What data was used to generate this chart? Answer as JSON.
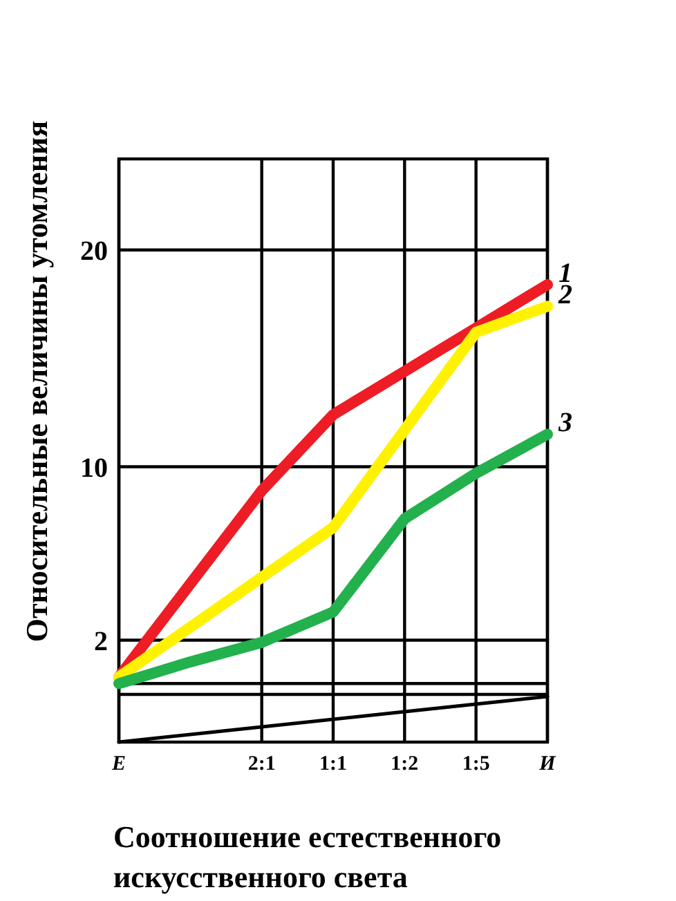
{
  "chart_data": {
    "type": "line",
    "xlabel": "Соотношение естественного\nискусственного света",
    "ylabel": "Относительные величины утомления",
    "categories": [
      "Е",
      null,
      "2:1",
      "1:1",
      "1:2",
      "1:5",
      "И"
    ],
    "ylim": [
      -2.7,
      24.2
    ],
    "yticks": [
      {
        "value": -0.5,
        "label": null
      },
      {
        "value": 0,
        "label": null
      },
      2,
      10,
      20
    ],
    "grid": true,
    "line_style": "solid",
    "marker": "none",
    "series": [
      {
        "name": "1",
        "color": "#ee1c25",
        "values": [
          0.3,
          4.6,
          8.9,
          12.4,
          14.4,
          16.4,
          18.4
        ]
      },
      {
        "name": "2",
        "color": "#fff200",
        "values": [
          0.3,
          2.6,
          4.9,
          7.2,
          11.7,
          16.2,
          17.4
        ]
      },
      {
        "name": "3",
        "color": "#22b14c",
        "values": [
          0,
          1.0,
          1.9,
          3.3,
          7.6,
          9.7,
          11.5
        ]
      },
      {
        "color": "#000000",
        "values": [
          -2.7,
          -2.35,
          -2.0,
          -1.65,
          -1.3,
          -0.95,
          -0.6
        ]
      }
    ]
  }
}
